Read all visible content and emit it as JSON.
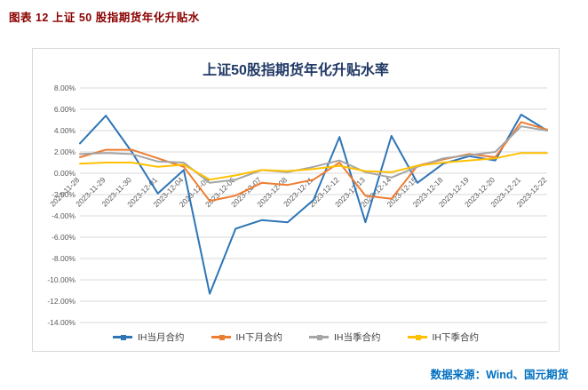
{
  "header": {
    "caption": "图表 12 上证 50 股指期货年化升贴水"
  },
  "footer": {
    "source": "数据来源：Wind、国元期货"
  },
  "chart_data": {
    "type": "line",
    "title": "上证50股指期货年化升贴水率",
    "categories": [
      "2023-11-28",
      "2023-11-29",
      "2023-11-30",
      "2023-12-01",
      "2023-12-04",
      "2023-12-05",
      "2023-12-06",
      "2023-12-07",
      "2023-12-08",
      "2023-12-11",
      "2023-12-12",
      "2023-12-13",
      "2023-12-14",
      "2023-12-15",
      "2023-12-18",
      "2023-12-19",
      "2023-12-20",
      "2023-12-21",
      "2023-12-22"
    ],
    "series": [
      {
        "name": "IH当月合约",
        "color": "#2E75B6",
        "values": [
          2.8,
          5.4,
          2.0,
          -1.9,
          0.3,
          -11.3,
          -5.2,
          -4.4,
          -4.6,
          -2.5,
          3.4,
          -4.6,
          3.5,
          -0.9,
          0.9,
          1.6,
          1.2,
          5.5,
          4.0
        ]
      },
      {
        "name": "IH下月合约",
        "color": "#ED7D31",
        "values": [
          1.5,
          2.2,
          2.2,
          1.4,
          0.6,
          -2.6,
          -2.1,
          -0.9,
          -1.1,
          -0.6,
          1.0,
          -2.1,
          -2.4,
          0.7,
          1.3,
          1.8,
          1.5,
          4.8,
          4.1
        ]
      },
      {
        "name": "IH当季合约",
        "color": "#A5A5A5",
        "values": [
          1.8,
          1.9,
          1.8,
          1.1,
          1.0,
          -0.9,
          -0.6,
          0.3,
          0.1,
          0.6,
          1.2,
          0.1,
          -0.4,
          0.6,
          1.4,
          1.7,
          2.0,
          4.4,
          4.0
        ]
      },
      {
        "name": "IH下季合约",
        "color": "#FFC000",
        "values": [
          0.9,
          1.0,
          1.0,
          0.6,
          0.8,
          -0.6,
          -0.2,
          0.3,
          0.2,
          0.4,
          0.7,
          0.2,
          0.1,
          0.7,
          1.0,
          1.2,
          1.4,
          1.9,
          1.9
        ]
      }
    ],
    "y_axis": {
      "min": -14,
      "max": 8,
      "step": 2,
      "format": "percent"
    },
    "grid": true,
    "legend_position": "bottom",
    "colors": {
      "grid": "#D9D9D9",
      "tick_text": "#595959",
      "title": "#1F3864"
    }
  }
}
